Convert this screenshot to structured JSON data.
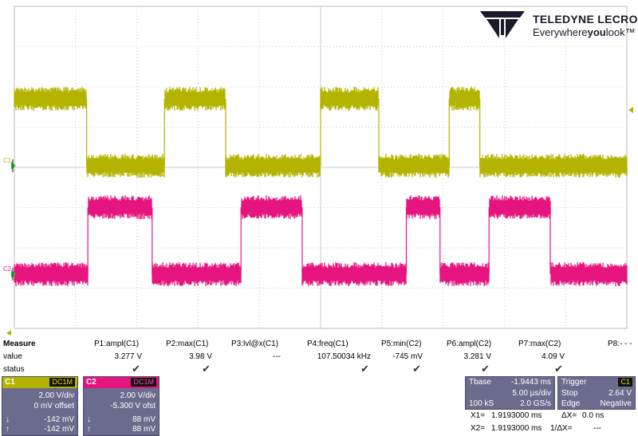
{
  "brand": {
    "name": "TELEDYNE LECROY",
    "tagline_pre": "Everywhere",
    "tagline_bold": "you",
    "tagline_post": "look",
    "tm": "™"
  },
  "colors": {
    "c1": "#b4b400",
    "c2": "#e6157e",
    "grid": "#c8c8c8",
    "panel": "#6b6b8e",
    "green_marker": "#22cc33"
  },
  "traces": {
    "c1_label": "C1",
    "c2_label": "C2",
    "c1_high_segments": [
      [
        0,
        1.18
      ],
      [
        2.45,
        3.45
      ],
      [
        5.0,
        5.95
      ],
      [
        7.1,
        7.6
      ]
    ],
    "c2_high_segments": [
      [
        1.2,
        2.25
      ],
      [
        3.7,
        4.7
      ],
      [
        6.4,
        6.95
      ],
      [
        7.75,
        8.75
      ]
    ]
  },
  "measure": {
    "title": "Measure",
    "row_value": "value",
    "row_status": "status",
    "params": [
      {
        "name": "P1:ampl(C1)",
        "value": "3.277 V",
        "status": "✔"
      },
      {
        "name": "P2:max(C1)",
        "value": "3.98 V",
        "status": "✔"
      },
      {
        "name": "P3:lvl@x(C1)",
        "value": "---",
        "status": ""
      },
      {
        "name": "P4:freq(C1)",
        "value": "107.50034 kHz",
        "status": "✔"
      },
      {
        "name": "P5:min(C2)",
        "value": "-745 mV",
        "status": "✔"
      },
      {
        "name": "P6:ampl(C2)",
        "value": "3.281 V",
        "status": "✔"
      },
      {
        "name": "P7:max(C2)",
        "value": "4.09 V",
        "status": "✔"
      },
      {
        "name": "P8:- - -",
        "value": "",
        "status": ""
      }
    ]
  },
  "channels": [
    {
      "label": "C1",
      "coupling": "DC1M",
      "vdiv": "2.00 V/div",
      "offset": "0 mV offset",
      "low_arrow": "↓",
      "low": "-142 mV",
      "high_arrow": "↑",
      "high": "-142 mV"
    },
    {
      "label": "C2",
      "coupling": "DC1M",
      "vdiv": "2.00 V/div",
      "offset": "-5.300 V ofst",
      "low_arrow": "↓",
      "low": "88 mV",
      "high_arrow": "↑",
      "high": "88 mV"
    }
  ],
  "timebase": {
    "label": "Tbase",
    "delay": "-1.9443 ms",
    "tdiv": "5.00 µs/div",
    "samples": "100 kS",
    "rate": "2.0 GS/s"
  },
  "trigger": {
    "label": "Trigger",
    "channel": "C1",
    "mode": "Stop",
    "level": "2.64 V",
    "type": "Edge",
    "slope": "Negative"
  },
  "cursors": {
    "x1_label": "X1=",
    "x1": "1.9193000 ms",
    "dx_label": "ΔX=",
    "dx": "0.0 ns",
    "x2_label": "X2=",
    "x2": "1.9193000 ms",
    "inv_label": "1/ΔX=",
    "inv": "---"
  }
}
